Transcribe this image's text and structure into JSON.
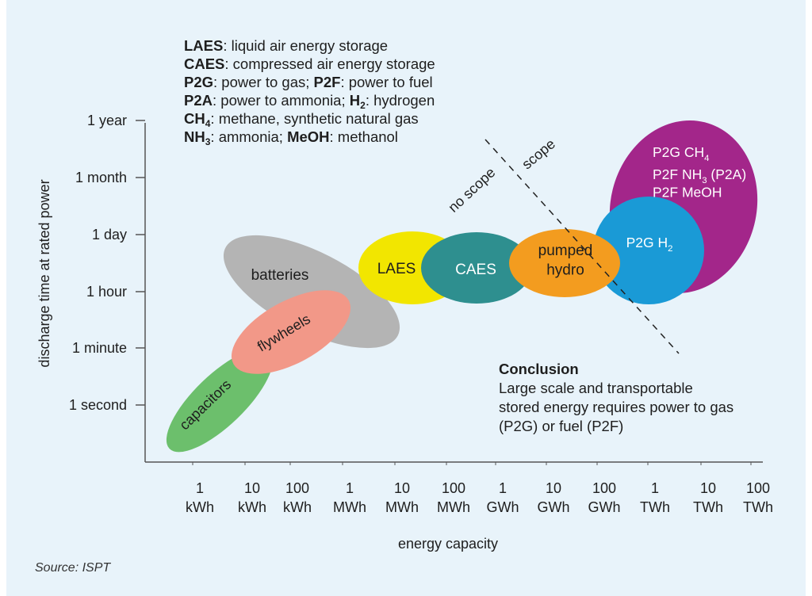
{
  "legend": [
    {
      "parts": [
        {
          "t": "LAES",
          "b": true
        },
        {
          "t": ": liquid air energy storage"
        }
      ]
    },
    {
      "parts": [
        {
          "t": "CAES",
          "b": true
        },
        {
          "t": ": compressed air energy storage"
        }
      ]
    },
    {
      "parts": [
        {
          "t": "P2G",
          "b": true
        },
        {
          "t": ": power to gas; "
        },
        {
          "t": "P2F",
          "b": true
        },
        {
          "t": ": power to fuel"
        }
      ]
    },
    {
      "parts": [
        {
          "t": "P2A",
          "b": true
        },
        {
          "t": ": power to ammonia; "
        },
        {
          "t": "H",
          "b": true
        },
        {
          "t": "2",
          "b": true,
          "sub": true
        },
        {
          "t": ": hydrogen"
        }
      ]
    },
    {
      "parts": [
        {
          "t": "CH",
          "b": true
        },
        {
          "t": "4",
          "b": true,
          "sub": true
        },
        {
          "t": ": methane, synthetic natural gas"
        }
      ]
    },
    {
      "parts": [
        {
          "t": "NH",
          "b": true
        },
        {
          "t": "3",
          "b": true,
          "sub": true
        },
        {
          "t": ": ammonia; "
        },
        {
          "t": "MeOH",
          "b": true
        },
        {
          "t": ": methanol"
        }
      ]
    }
  ],
  "conclusion": {
    "title": "Conclusion",
    "body": "Large scale and transportable stored energy requires power to gas (P2G) or fuel (P2F)"
  },
  "source": "Source: ISPT",
  "chart_data": {
    "type": "scatter",
    "xlabel": "energy capacity",
    "ylabel": "discharge time at rated power",
    "x_ticks": [
      {
        "num": "1",
        "unit": "kWh"
      },
      {
        "num": "10",
        "unit": "kWh"
      },
      {
        "num": "100",
        "unit": "kWh"
      },
      {
        "num": "1",
        "unit": "MWh"
      },
      {
        "num": "10",
        "unit": "MWh"
      },
      {
        "num": "100",
        "unit": "MWh"
      },
      {
        "num": "1",
        "unit": "GWh"
      },
      {
        "num": "10",
        "unit": "GWh"
      },
      {
        "num": "100",
        "unit": "GWh"
      },
      {
        "num": "1",
        "unit": "TWh"
      },
      {
        "num": "10",
        "unit": "TWh"
      },
      {
        "num": "100",
        "unit": "TWh"
      }
    ],
    "y_ticks": [
      "1 second",
      "1 minute",
      "1 hour",
      "1 day",
      "1 month",
      "1 year"
    ],
    "x_scale": "log",
    "y_scale": "log",
    "regions": [
      {
        "label": "batteries",
        "color": "#b4b4b4"
      },
      {
        "label": "LAES",
        "color": "#f2e600"
      },
      {
        "label": "CAES",
        "color": "#2e8f8f"
      },
      {
        "label": "P2G CH4 / P2F NH3 (P2A) / P2F MeOH",
        "lines": [
          [
            "P2G CH",
            "4",
            ""
          ],
          [
            "P2F NH",
            "3",
            " (P2A)"
          ],
          [
            "P2F MeOH",
            "",
            ""
          ]
        ],
        "color": "#a3268a"
      },
      {
        "label": "P2G H2",
        "lines": [
          [
            "P2G H",
            "2",
            ""
          ]
        ],
        "color": "#1a9ad6"
      },
      {
        "label": "pumped hydro",
        "lines": [
          [
            "pumped",
            "",
            ""
          ],
          [
            "hydro",
            "",
            ""
          ]
        ],
        "color": "#f39c1f"
      },
      {
        "label": "capacitors",
        "color": "#6cbf6c"
      },
      {
        "label": "flywheels",
        "color": "#f29888"
      }
    ],
    "divider_labels": {
      "left": "no scope",
      "right": "scope"
    }
  }
}
